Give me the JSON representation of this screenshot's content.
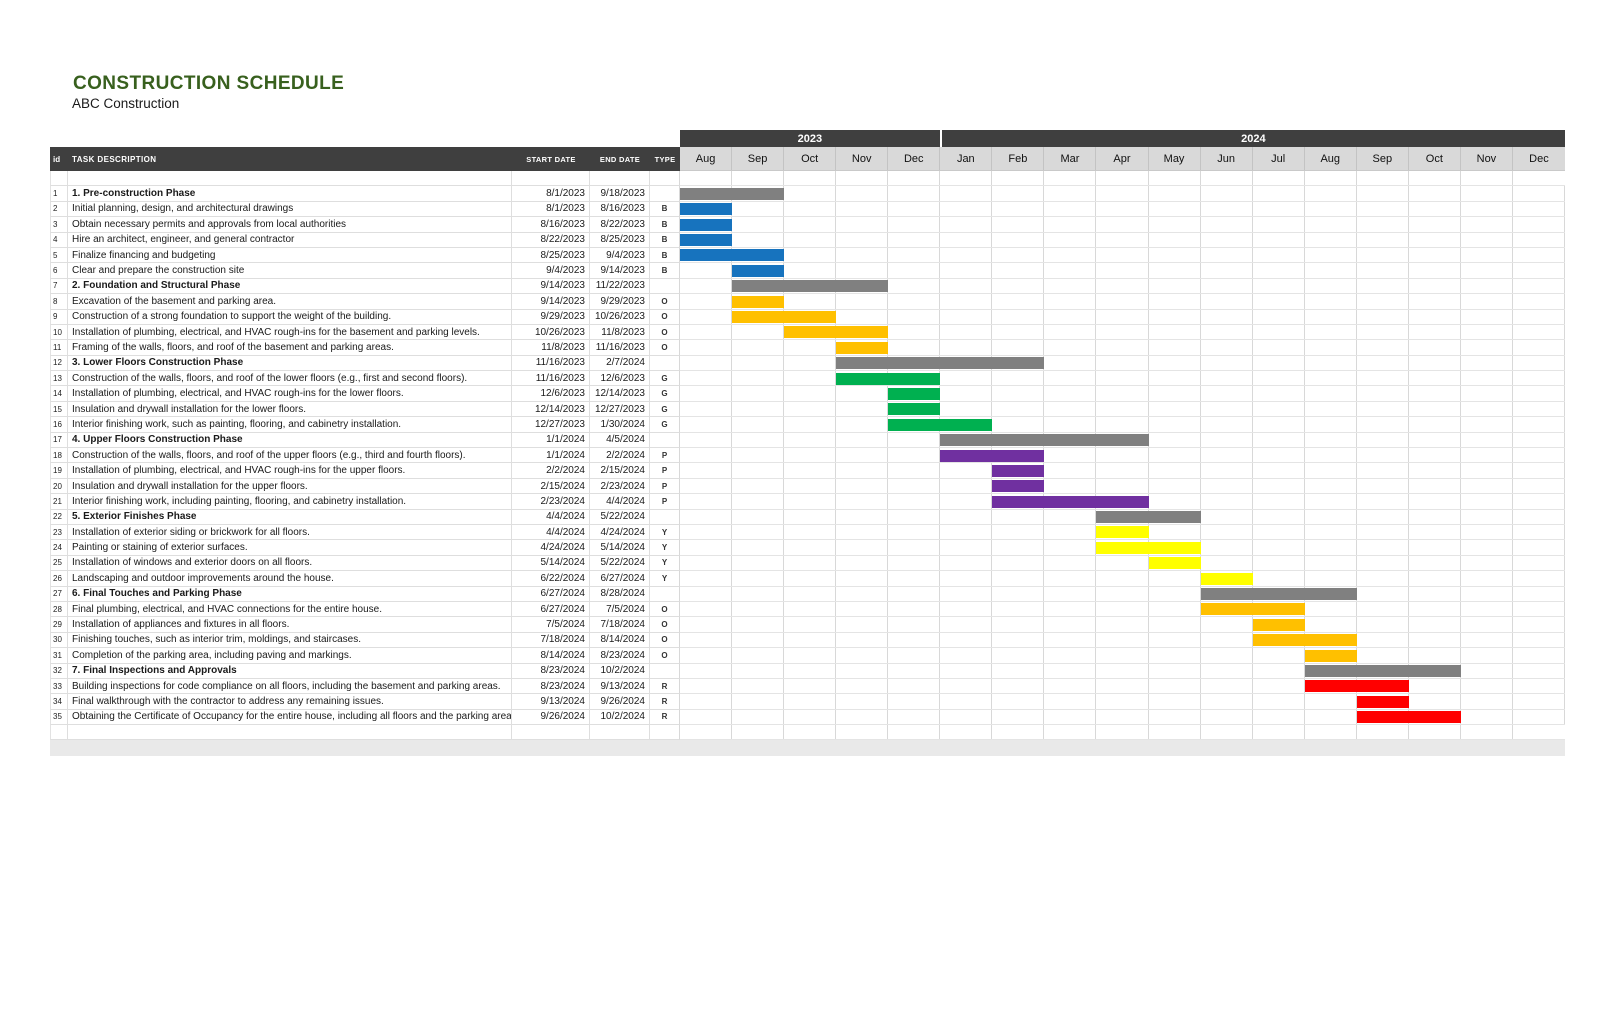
{
  "title": "CONSTRUCTION SCHEDULE",
  "subtitle": "ABC Construction",
  "columns": {
    "id": "id",
    "task": "TASK DESCRIPTION",
    "start": "START DATE",
    "end": "END DATE",
    "type": "TYPE"
  },
  "timeline": {
    "years": [
      {
        "label": "2023",
        "months": 5
      },
      {
        "label": "2024",
        "months": 12
      }
    ],
    "months": [
      "Aug",
      "Sep",
      "Oct",
      "Nov",
      "Dec",
      "Jan",
      "Feb",
      "Mar",
      "Apr",
      "May",
      "Jun",
      "Jul",
      "Aug",
      "Sep",
      "Oct",
      "Nov",
      "Dec"
    ],
    "start_month": "Aug 2023",
    "end_month": "Dec 2024"
  },
  "colors": {
    "B": "#1773be",
    "O": "#ffc000",
    "G": "#00b050",
    "P": "#7030a0",
    "Y": "#ffff00",
    "R": "#ff0000",
    "phase": "#808080",
    "header_bg": "#3f3f3f",
    "month_row_bg": "#d9d9d9",
    "title_green": "#38601e"
  },
  "chart_data": {
    "type": "table",
    "variant": "gantt",
    "title": "CONSTRUCTION SCHEDULE",
    "timeline": {
      "start": "Aug 2023",
      "end": "Dec 2024",
      "granularity": "month"
    },
    "legend_types": {
      "B": "blue",
      "O": "orange",
      "G": "green",
      "P": "purple",
      "Y": "yellow",
      "R": "red",
      "": "gray phase bar"
    },
    "tasks": [
      {
        "id": "1",
        "task": "1. Pre-construction Phase",
        "start": "8/1/2023",
        "end": "9/18/2023",
        "type": ""
      },
      {
        "id": "2",
        "task": "Initial planning, design, and architectural drawings",
        "start": "8/1/2023",
        "end": "8/16/2023",
        "type": "B"
      },
      {
        "id": "3",
        "task": "Obtain necessary permits and approvals from local authorities",
        "start": "8/16/2023",
        "end": "8/22/2023",
        "type": "B"
      },
      {
        "id": "4",
        "task": "Hire an architect, engineer, and general contractor",
        "start": "8/22/2023",
        "end": "8/25/2023",
        "type": "B"
      },
      {
        "id": "5",
        "task": "Finalize financing and budgeting",
        "start": "8/25/2023",
        "end": "9/4/2023",
        "type": "B"
      },
      {
        "id": "6",
        "task": "Clear and prepare the construction site",
        "start": "9/4/2023",
        "end": "9/14/2023",
        "type": "B"
      },
      {
        "id": "7",
        "task": "2. Foundation and Structural Phase",
        "start": "9/14/2023",
        "end": "11/22/2023",
        "type": ""
      },
      {
        "id": "8",
        "task": "Excavation of the basement and parking area.",
        "start": "9/14/2023",
        "end": "9/29/2023",
        "type": "O"
      },
      {
        "id": "9",
        "task": "Construction of a strong foundation to support the weight of the building.",
        "start": "9/29/2023",
        "end": "10/26/2023",
        "type": "O"
      },
      {
        "id": "10",
        "task": "Installation of plumbing, electrical, and HVAC rough-ins for the basement and parking levels.",
        "start": "10/26/2023",
        "end": "11/8/2023",
        "type": "O"
      },
      {
        "id": "11",
        "task": "Framing of the walls, floors, and roof of the basement and parking areas.",
        "start": "11/8/2023",
        "end": "11/16/2023",
        "type": "O"
      },
      {
        "id": "12",
        "task": "3. Lower Floors Construction Phase",
        "start": "11/16/2023",
        "end": "2/7/2024",
        "type": ""
      },
      {
        "id": "13",
        "task": "Construction of the walls, floors, and roof of the lower floors (e.g., first and second floors).",
        "start": "11/16/2023",
        "end": "12/6/2023",
        "type": "G"
      },
      {
        "id": "14",
        "task": "Installation of plumbing, electrical, and HVAC rough-ins for the lower floors.",
        "start": "12/6/2023",
        "end": "12/14/2023",
        "type": "G"
      },
      {
        "id": "15",
        "task": "Insulation and drywall installation for the lower floors.",
        "start": "12/14/2023",
        "end": "12/27/2023",
        "type": "G"
      },
      {
        "id": "16",
        "task": "Interior finishing work, such as painting, flooring, and cabinetry installation.",
        "start": "12/27/2023",
        "end": "1/30/2024",
        "type": "G"
      },
      {
        "id": "17",
        "task": "4. Upper Floors Construction Phase",
        "start": "1/1/2024",
        "end": "4/5/2024",
        "type": ""
      },
      {
        "id": "18",
        "task": "Construction of the walls, floors, and roof of the upper floors (e.g., third and fourth floors).",
        "start": "1/1/2024",
        "end": "2/2/2024",
        "type": "P"
      },
      {
        "id": "19",
        "task": "Installation of plumbing, electrical, and HVAC rough-ins for the upper floors.",
        "start": "2/2/2024",
        "end": "2/15/2024",
        "type": "P"
      },
      {
        "id": "20",
        "task": "Insulation and drywall installation for the upper floors.",
        "start": "2/15/2024",
        "end": "2/23/2024",
        "type": "P"
      },
      {
        "id": "21",
        "task": "Interior finishing work, including painting, flooring, and cabinetry installation.",
        "start": "2/23/2024",
        "end": "4/4/2024",
        "type": "P"
      },
      {
        "id": "22",
        "task": "5. Exterior Finishes Phase",
        "start": "4/4/2024",
        "end": "5/22/2024",
        "type": ""
      },
      {
        "id": "23",
        "task": "Installation of exterior siding or brickwork for all floors.",
        "start": "4/4/2024",
        "end": "4/24/2024",
        "type": "Y"
      },
      {
        "id": "24",
        "task": "Painting or staining of exterior surfaces.",
        "start": "4/24/2024",
        "end": "5/14/2024",
        "type": "Y"
      },
      {
        "id": "25",
        "task": "Installation of windows and exterior doors on all floors.",
        "start": "5/14/2024",
        "end": "5/22/2024",
        "type": "Y"
      },
      {
        "id": "26",
        "task": "Landscaping and outdoor improvements around the house.",
        "start": "6/22/2024",
        "end": "6/27/2024",
        "type": "Y"
      },
      {
        "id": "27",
        "task": "6. Final Touches and Parking Phase",
        "start": "6/27/2024",
        "end": "8/28/2024",
        "type": ""
      },
      {
        "id": "28",
        "task": "Final plumbing, electrical, and HVAC connections for the entire house.",
        "start": "6/27/2024",
        "end": "7/5/2024",
        "type": "O"
      },
      {
        "id": "29",
        "task": "Installation of appliances and fixtures in all floors.",
        "start": "7/5/2024",
        "end": "7/18/2024",
        "type": "O"
      },
      {
        "id": "30",
        "task": "Finishing touches, such as interior trim, moldings, and staircases.",
        "start": "7/18/2024",
        "end": "8/14/2024",
        "type": "O"
      },
      {
        "id": "31",
        "task": "Completion of the parking area, including paving and markings.",
        "start": "8/14/2024",
        "end": "8/23/2024",
        "type": "O"
      },
      {
        "id": "32",
        "task": "7. Final Inspections and Approvals",
        "start": "8/23/2024",
        "end": "10/2/2024",
        "type": ""
      },
      {
        "id": "33",
        "task": "Building inspections for code compliance on all floors, including the basement and parking areas.",
        "start": "8/23/2024",
        "end": "9/13/2024",
        "type": "R"
      },
      {
        "id": "34",
        "task": "Final walkthrough with the contractor to address any remaining issues.",
        "start": "9/13/2024",
        "end": "9/26/2024",
        "type": "R"
      },
      {
        "id": "35",
        "task": "Obtaining the Certificate of Occupancy for the entire house, including all floors and the parking area.",
        "start": "9/26/2024",
        "end": "10/2/2024",
        "type": "R"
      }
    ]
  }
}
